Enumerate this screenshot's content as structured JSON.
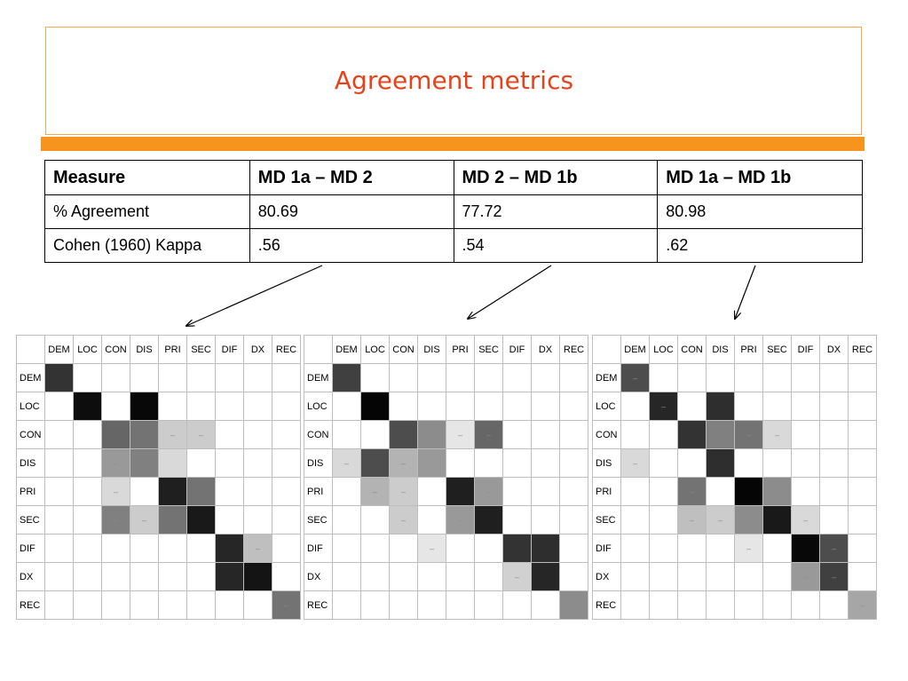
{
  "slide": {
    "title": "Agreement metrics"
  },
  "table": {
    "headers": [
      "Measure",
      "MD 1a – MD 2",
      "MD 2 – MD 1b",
      "MD 1a – MD 1b"
    ],
    "rows": [
      [
        "% Agreement",
        "80.69",
        "77.72",
        "80.98"
      ],
      [
        "Cohen (1960) Kappa",
        ".56",
        ".54",
        ".62"
      ]
    ]
  },
  "colors": {
    "title": "#e8421a",
    "accent_bar": "#f7941d",
    "title_border": "#f7a64a"
  },
  "matrices": [
    {
      "name": "MD 1a – MD 2",
      "labels": [
        "DEM",
        "LOC",
        "CON",
        "DIS",
        "PRI",
        "SEC",
        "DIF",
        "DX",
        "REC"
      ],
      "cells": [
        [
          0.8,
          0,
          0,
          0,
          0,
          0,
          0,
          0,
          0
        ],
        [
          0,
          0.95,
          0,
          0.97,
          0,
          0,
          0,
          0,
          0
        ],
        [
          0,
          0,
          0.6,
          0.55,
          0.2,
          0.2,
          0,
          0,
          0
        ],
        [
          0,
          0,
          0.4,
          0.5,
          0.15,
          0,
          0,
          0,
          0
        ],
        [
          0,
          0,
          0.15,
          0,
          0.88,
          0.55,
          0,
          0,
          0
        ],
        [
          0,
          0,
          0.5,
          0.2,
          0.55,
          0.9,
          0,
          0,
          0
        ],
        [
          0,
          0,
          0,
          0,
          0,
          0,
          0.85,
          0.25,
          0
        ],
        [
          0,
          0,
          0,
          0,
          0,
          0,
          0.85,
          0.92,
          0
        ],
        [
          0,
          0,
          0,
          0,
          0,
          0,
          0,
          0,
          0.55
        ]
      ],
      "dashed": [
        [
          2,
          4
        ],
        [
          2,
          5
        ],
        [
          3,
          2
        ],
        [
          4,
          2
        ],
        [
          5,
          2
        ],
        [
          5,
          3
        ],
        [
          6,
          7
        ],
        [
          8,
          8
        ]
      ]
    },
    {
      "name": "MD 2 – MD 1b",
      "labels": [
        "DEM",
        "LOC",
        "CON",
        "DIS",
        "PRI",
        "SEC",
        "DIF",
        "DX",
        "REC"
      ],
      "cells": [
        [
          0.75,
          0,
          0,
          0,
          0,
          0,
          0,
          0,
          0
        ],
        [
          0,
          0.98,
          0,
          0,
          0,
          0,
          0,
          0,
          0
        ],
        [
          0,
          0,
          0.7,
          0.45,
          0.1,
          0.6,
          0,
          0,
          0
        ],
        [
          0.15,
          0.7,
          0.3,
          0.4,
          0,
          0,
          0,
          0,
          0
        ],
        [
          0,
          0.3,
          0.2,
          0,
          0.88,
          0.4,
          0,
          0,
          0
        ],
        [
          0,
          0,
          0.2,
          0,
          0.4,
          0.88,
          0,
          0,
          0
        ],
        [
          0,
          0,
          0,
          0.1,
          0,
          0,
          0.8,
          0.82,
          0
        ],
        [
          0,
          0,
          0,
          0,
          0,
          0,
          0.18,
          0.85,
          0
        ],
        [
          0,
          0,
          0,
          0,
          0,
          0,
          0,
          0,
          0.45
        ]
      ],
      "dashed": [
        [
          2,
          3
        ],
        [
          2,
          4
        ],
        [
          2,
          5
        ],
        [
          3,
          0
        ],
        [
          3,
          2
        ],
        [
          4,
          1
        ],
        [
          4,
          2
        ],
        [
          4,
          5
        ],
        [
          5,
          2
        ],
        [
          5,
          4
        ],
        [
          6,
          3
        ],
        [
          7,
          6
        ],
        [
          8,
          8
        ]
      ]
    },
    {
      "name": "MD 1a – MD 1b",
      "labels": [
        "DEM",
        "LOC",
        "CON",
        "DIS",
        "PRI",
        "SEC",
        "DIF",
        "DX",
        "REC"
      ],
      "cells": [
        [
          0.7,
          0,
          0,
          0,
          0,
          0,
          0,
          0,
          0
        ],
        [
          0,
          0.85,
          0,
          0.82,
          0,
          0,
          0,
          0,
          0
        ],
        [
          0,
          0,
          0.8,
          0.5,
          0.55,
          0.15,
          0,
          0,
          0
        ],
        [
          0.15,
          0,
          0,
          0.82,
          0,
          0,
          0,
          0,
          0
        ],
        [
          0,
          0,
          0.55,
          0,
          0.98,
          0.45,
          0,
          0,
          0
        ],
        [
          0,
          0,
          0.25,
          0.2,
          0.45,
          0.9,
          0.15,
          0,
          0
        ],
        [
          0,
          0,
          0,
          0,
          0.1,
          0,
          0.97,
          0.7,
          0
        ],
        [
          0,
          0,
          0,
          0,
          0,
          0,
          0.4,
          0.75,
          0
        ],
        [
          0,
          0,
          0,
          0,
          0,
          0,
          0,
          0,
          0.35
        ]
      ],
      "dashed": [
        [
          0,
          0
        ],
        [
          1,
          1
        ],
        [
          2,
          4
        ],
        [
          2,
          5
        ],
        [
          3,
          0
        ],
        [
          4,
          2
        ],
        [
          5,
          2
        ],
        [
          5,
          3
        ],
        [
          5,
          4
        ],
        [
          5,
          6
        ],
        [
          6,
          4
        ],
        [
          6,
          7
        ],
        [
          7,
          6
        ],
        [
          7,
          7
        ],
        [
          8,
          8
        ]
      ]
    }
  ]
}
